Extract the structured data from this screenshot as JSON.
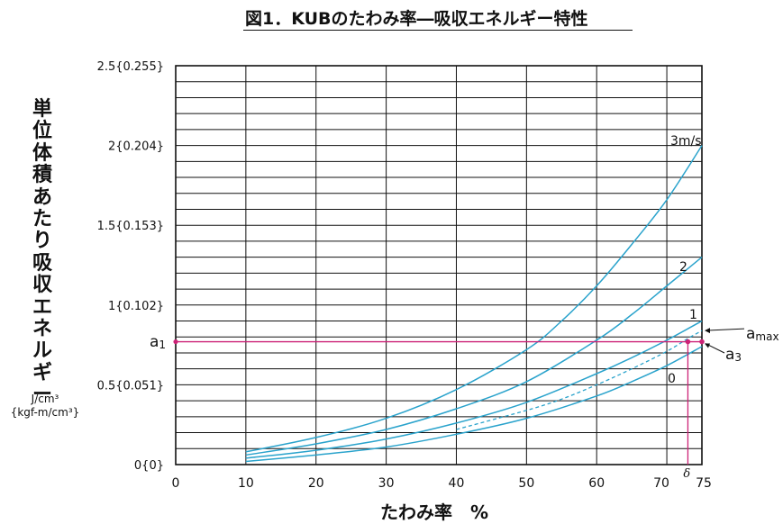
{
  "title": "図1．KUBのたわみ率―吸収エネルギー特性",
  "chart_data": {
    "type": "line",
    "xlabel": "たわみ率　%",
    "ylabel": "単位体積あたり吸収エネルギー",
    "yunit_line1": "J/cm³",
    "yunit_line2": "{kgf-m/cm³}",
    "xlim": [
      0,
      75
    ],
    "ylim": [
      0,
      2.5
    ],
    "x_ticks": [
      {
        "value": 0,
        "label": "0"
      },
      {
        "value": 10,
        "label": "10"
      },
      {
        "value": 20,
        "label": "20"
      },
      {
        "value": 30,
        "label": "30"
      },
      {
        "value": 40,
        "label": "40"
      },
      {
        "value": 50,
        "label": "50"
      },
      {
        "value": 60,
        "label": "60"
      },
      {
        "value": 70,
        "label": "70"
      },
      {
        "value": 75,
        "label": "75"
      }
    ],
    "y_ticks": [
      {
        "value": 0,
        "label": "0{0}"
      },
      {
        "value": 0.5,
        "label": "0.5{0.051}"
      },
      {
        "value": 1,
        "label": "1{0.102}"
      },
      {
        "value": 1.5,
        "label": "1.5{0.153}"
      },
      {
        "value": 2,
        "label": "2{0.204}"
      },
      {
        "value": 2.5,
        "label": "2.5{0.255}"
      }
    ],
    "grid": true,
    "grid_minor_step_y": 0.1,
    "series": [
      {
        "name": "3m/s",
        "color": "#2aa3cc",
        "x": [
          10,
          20,
          30,
          40,
          50,
          55,
          60,
          65,
          70,
          75
        ],
        "y": [
          0.08,
          0.17,
          0.29,
          0.47,
          0.72,
          0.9,
          1.12,
          1.38,
          1.66,
          2.0
        ]
      },
      {
        "name": "2",
        "color": "#2aa3cc",
        "x": [
          10,
          20,
          30,
          40,
          50,
          60,
          65,
          70,
          75
        ],
        "y": [
          0.06,
          0.13,
          0.22,
          0.35,
          0.52,
          0.78,
          0.94,
          1.12,
          1.3
        ]
      },
      {
        "name": "1",
        "color": "#2aa3cc",
        "x": [
          10,
          20,
          30,
          40,
          50,
          60,
          65,
          70,
          75
        ],
        "y": [
          0.04,
          0.09,
          0.16,
          0.26,
          0.39,
          0.57,
          0.67,
          0.78,
          0.9
        ]
      },
      {
        "name": "0",
        "color": "#2aa3cc",
        "x": [
          10,
          20,
          30,
          40,
          50,
          60,
          65,
          70,
          75
        ],
        "y": [
          0.02,
          0.06,
          0.11,
          0.19,
          0.29,
          0.43,
          0.52,
          0.62,
          0.74
        ]
      }
    ],
    "dashed_curve": {
      "color": "#2aa3cc",
      "x": [
        40,
        50,
        55,
        60,
        65,
        70,
        73,
        75
      ],
      "y": [
        0.22,
        0.34,
        0.41,
        0.5,
        0.6,
        0.71,
        0.79,
        0.84
      ]
    },
    "annotations": [
      {
        "label": "a",
        "sub": "1",
        "y": 0.77,
        "color": "#cc2277"
      },
      {
        "label": "a",
        "sub": "max",
        "x": 75,
        "y": 0.84
      },
      {
        "label": "a",
        "sub": "3",
        "x": 75,
        "y": 0.77
      },
      {
        "label": "δ",
        "x": 73,
        "y": 0,
        "color": "#cc2277"
      }
    ]
  }
}
